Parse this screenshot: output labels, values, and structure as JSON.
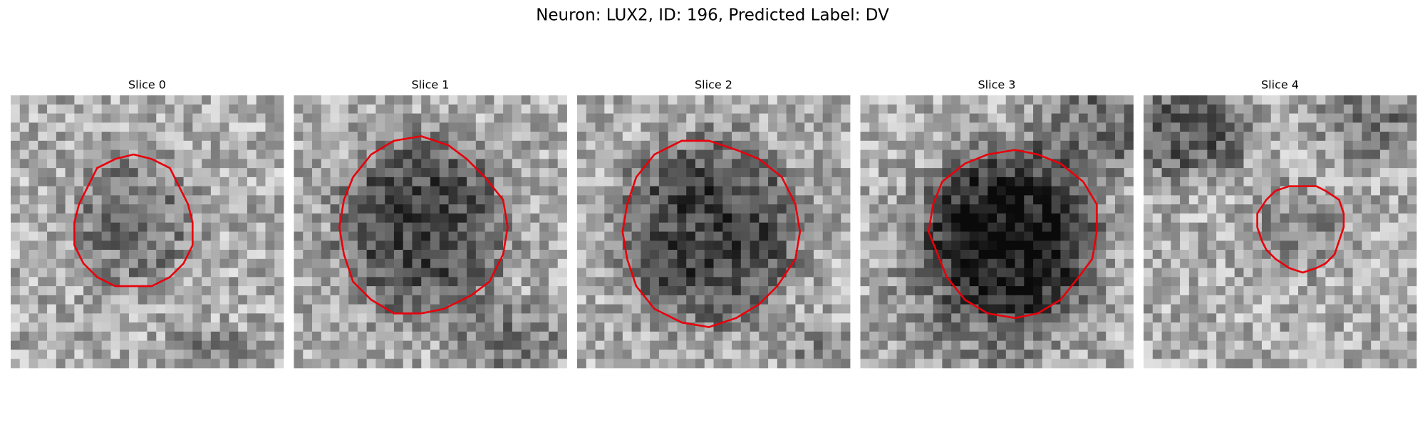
{
  "title": "Neuron: LUX2, ID: 196, Predicted Label: DV",
  "panels": [
    {
      "title": "Slice 0"
    },
    {
      "title": "Slice 1"
    },
    {
      "title": "Slice 2"
    },
    {
      "title": "Slice 3"
    },
    {
      "title": "Slice 4"
    }
  ]
}
